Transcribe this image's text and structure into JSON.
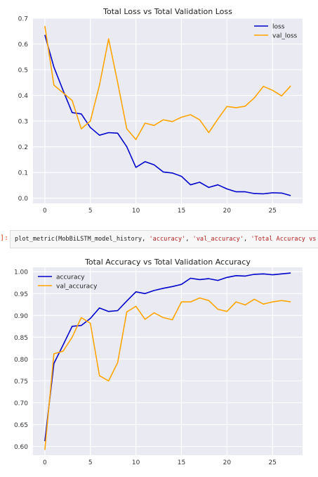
{
  "colors": {
    "train": "#0000cc",
    "val": "#ffa500",
    "plot_bg": "#eaeaf2",
    "grid": "#ffffff"
  },
  "code_cell": {
    "prompt": "]:",
    "fn": "plot_metric(MobBiLSTM_model_history, ",
    "arg1": "'accuracy'",
    "sep1": ", ",
    "arg2": "'val_accuracy'",
    "sep2": ", ",
    "arg3": "'Total Accuracy vs Total"
  },
  "chart_data": [
    {
      "type": "line",
      "title": "Total Loss vs Total Validation Loss",
      "xlabel": "",
      "ylabel": "",
      "xlim": [
        -1.3,
        28.3
      ],
      "ylim": [
        -0.02,
        0.7
      ],
      "x_ticks": [
        0,
        5,
        10,
        15,
        20,
        25
      ],
      "y_ticks": [
        0.0,
        0.1,
        0.2,
        0.3,
        0.4,
        0.5,
        0.6,
        0.7
      ],
      "y_tick_labels": [
        "0.0",
        "0.1",
        "0.2",
        "0.3",
        "0.4",
        "0.5",
        "0.6",
        "0.7"
      ],
      "grid": true,
      "legend": "top-right",
      "series": [
        {
          "name": "loss",
          "color": "#0000cc",
          "x": [
            0,
            1,
            2,
            3,
            4,
            5,
            6,
            7,
            8,
            9,
            10,
            11,
            12,
            13,
            14,
            15,
            16,
            17,
            18,
            19,
            20,
            21,
            22,
            23,
            24,
            25,
            26,
            27
          ],
          "y": [
            0.635,
            0.51,
            0.42,
            0.333,
            0.328,
            0.275,
            0.245,
            0.255,
            0.253,
            0.2,
            0.12,
            0.142,
            0.13,
            0.102,
            0.098,
            0.085,
            0.052,
            0.062,
            0.042,
            0.052,
            0.036,
            0.025,
            0.025,
            0.018,
            0.017,
            0.021,
            0.02,
            0.01
          ]
        },
        {
          "name": "val_loss",
          "color": "#ffa500",
          "x": [
            0,
            1,
            2,
            3,
            4,
            5,
            6,
            7,
            8,
            9,
            10,
            11,
            12,
            13,
            14,
            15,
            16,
            17,
            18,
            19,
            20,
            21,
            22,
            23,
            24,
            25,
            26,
            27
          ],
          "y": [
            0.67,
            0.44,
            0.41,
            0.38,
            0.27,
            0.3,
            0.44,
            0.62,
            0.45,
            0.27,
            0.228,
            0.292,
            0.283,
            0.305,
            0.298,
            0.315,
            0.325,
            0.305,
            0.255,
            0.308,
            0.357,
            0.352,
            0.358,
            0.39,
            0.435,
            0.42,
            0.398,
            0.437
          ]
        }
      ]
    },
    {
      "type": "line",
      "title": "Total Accuracy vs Total Validation Accuracy",
      "xlabel": "",
      "ylabel": "",
      "xlim": [
        -1.3,
        28.3
      ],
      "ylim": [
        0.58,
        1.01
      ],
      "x_ticks": [
        0,
        5,
        10,
        15,
        20,
        25
      ],
      "y_ticks": [
        0.6,
        0.65,
        0.7,
        0.75,
        0.8,
        0.85,
        0.9,
        0.95,
        1.0
      ],
      "y_tick_labels": [
        "0.60",
        "0.65",
        "0.70",
        "0.75",
        "0.80",
        "0.85",
        "0.90",
        "0.95",
        "1.00"
      ],
      "grid": true,
      "legend": "top-left",
      "series": [
        {
          "name": "accuracy",
          "color": "#0000cc",
          "x": [
            0,
            1,
            2,
            3,
            4,
            5,
            6,
            7,
            8,
            9,
            10,
            11,
            12,
            13,
            14,
            15,
            16,
            17,
            18,
            19,
            20,
            21,
            22,
            23,
            24,
            25,
            26,
            27
          ],
          "y": [
            0.612,
            0.79,
            0.832,
            0.875,
            0.877,
            0.893,
            0.917,
            0.909,
            0.911,
            0.933,
            0.954,
            0.95,
            0.957,
            0.962,
            0.966,
            0.971,
            0.985,
            0.982,
            0.984,
            0.98,
            0.987,
            0.991,
            0.99,
            0.994,
            0.995,
            0.993,
            0.995,
            0.997
          ]
        },
        {
          "name": "val_accuracy",
          "color": "#ffa500",
          "x": [
            0,
            1,
            2,
            3,
            4,
            5,
            6,
            7,
            8,
            9,
            10,
            11,
            12,
            13,
            14,
            15,
            16,
            17,
            18,
            19,
            20,
            21,
            22,
            23,
            24,
            25,
            26,
            27
          ],
          "y": [
            0.592,
            0.812,
            0.818,
            0.85,
            0.895,
            0.882,
            0.762,
            0.75,
            0.792,
            0.908,
            0.921,
            0.891,
            0.906,
            0.895,
            0.89,
            0.931,
            0.931,
            0.94,
            0.934,
            0.914,
            0.909,
            0.931,
            0.924,
            0.937,
            0.926,
            0.931,
            0.934,
            0.931
          ]
        }
      ]
    }
  ]
}
